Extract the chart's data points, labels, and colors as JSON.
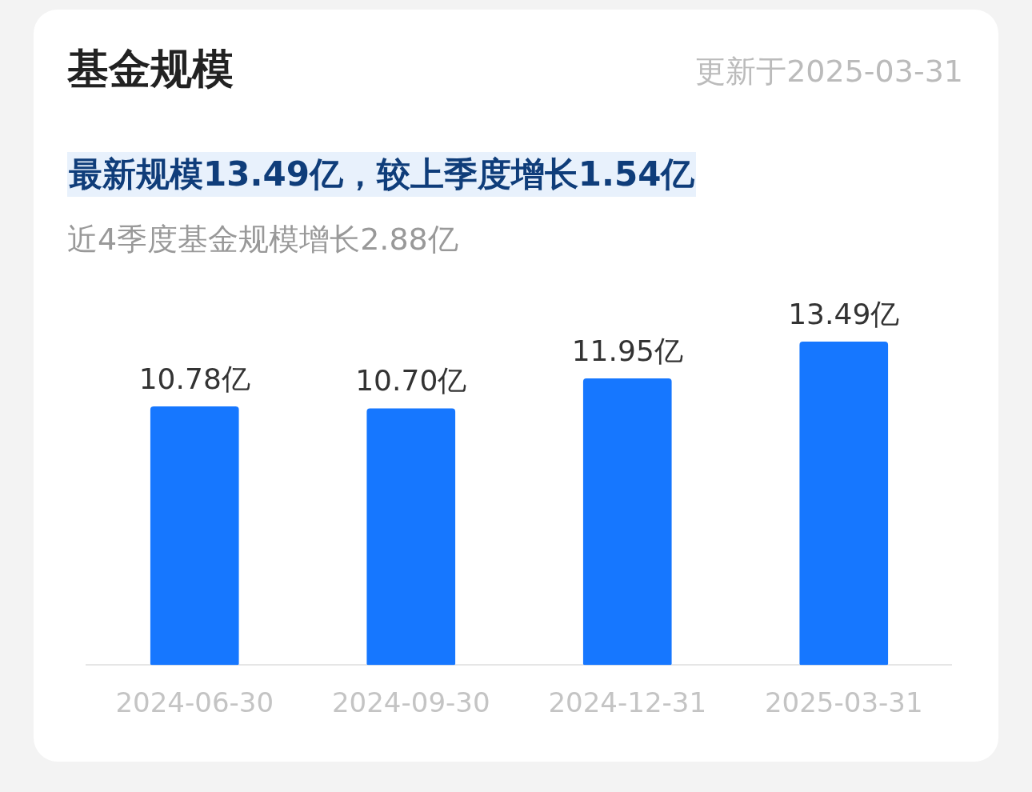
{
  "chart_data": {
    "type": "bar",
    "title": "基金规模",
    "subtitle": "最新规模13.49亿，较上季度增长1.54亿",
    "annotations": [
      "更新于2025-03-31",
      "近4季度基金规模增长2.88亿"
    ],
    "categories": [
      "2024-06-30",
      "2024-09-30",
      "2024-12-31",
      "2025-03-31"
    ],
    "values": [
      10.78,
      10.7,
      11.95,
      13.49
    ],
    "value_labels": [
      "10.78亿",
      "10.70亿",
      "11.95亿",
      "13.49亿"
    ],
    "color": "#1677ff",
    "relative": false,
    "grid": false,
    "legend": false
  }
}
